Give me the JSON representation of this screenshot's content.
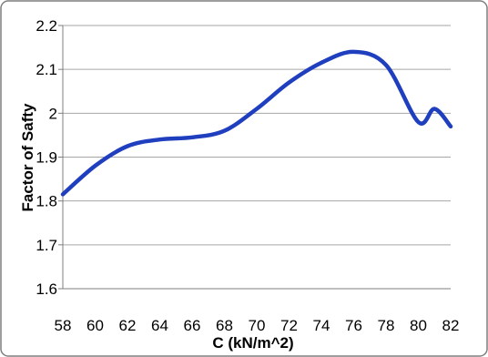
{
  "chart_data": {
    "type": "line",
    "xlabel": "C  (kN/m^2)",
    "ylabel": "Factor of Safty",
    "xlim": [
      58,
      82
    ],
    "ylim": [
      1.6,
      2.2
    ],
    "x_ticks": [
      "58",
      "60",
      "62",
      "64",
      "66",
      "68",
      "70",
      "72",
      "74",
      "76",
      "78",
      "80",
      "82"
    ],
    "y_ticks": [
      "1.6",
      "1.7",
      "1.8",
      "1.9",
      "2",
      "2.1",
      "2.2"
    ],
    "grid": true,
    "legend": "none",
    "x": [
      58,
      60,
      62,
      64,
      66,
      68,
      70,
      72,
      74,
      76,
      78,
      80,
      81,
      82
    ],
    "series": [
      {
        "color": "#1f3fbf",
        "values": [
          1.815,
          1.88,
          1.925,
          1.94,
          1.945,
          1.96,
          2.01,
          2.07,
          2.115,
          2.14,
          2.11,
          1.98,
          2.01,
          1.97
        ]
      }
    ]
  },
  "colors": {
    "line": "#1f3fbf",
    "grid": "#a6a6a6",
    "frame": "#7f7f7f"
  }
}
